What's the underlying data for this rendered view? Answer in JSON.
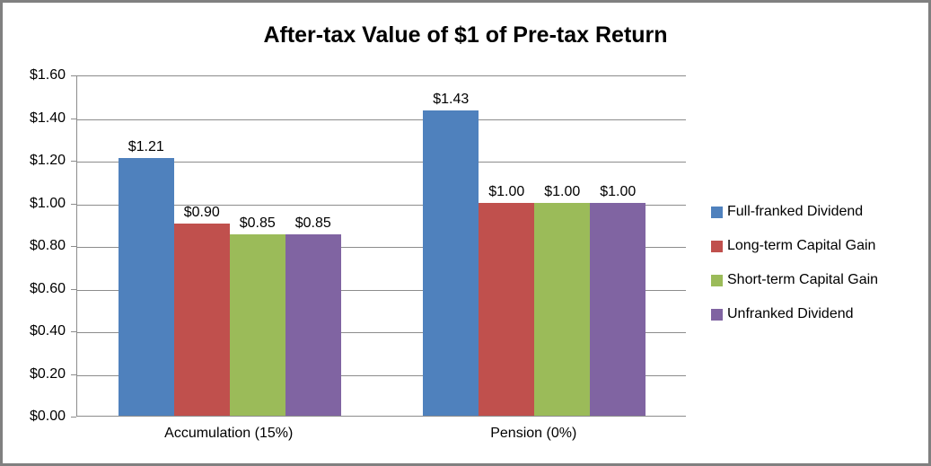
{
  "window": {
    "background": "#ffffff",
    "border_color": "#808080"
  },
  "chart_data": {
    "type": "bar",
    "title": "After-tax Value of $1 of Pre-tax Return",
    "xlabel": "",
    "ylabel": "",
    "categories": [
      "Accumulation (15%)",
      "Pension (0%)"
    ],
    "series": [
      {
        "name": "Full-franked Dividend",
        "color": "#4F81BD",
        "values": [
          1.21,
          1.43
        ],
        "labels": [
          "$1.21",
          "$1.43"
        ]
      },
      {
        "name": "Long-term Capital Gain",
        "color": "#C0504D",
        "values": [
          0.9,
          1.0
        ],
        "labels": [
          "$0.90",
          "$1.00"
        ]
      },
      {
        "name": "Short-term Capital Gain",
        "color": "#9BBB59",
        "values": [
          0.85,
          1.0
        ],
        "labels": [
          "$0.85",
          "$1.00"
        ]
      },
      {
        "name": "Unfranked Dividend",
        "color": "#8064A2",
        "values": [
          0.85,
          1.0
        ],
        "labels": [
          "$0.85",
          "$1.00"
        ]
      }
    ],
    "ylim": [
      0,
      1.6
    ],
    "ytick_step": 0.2,
    "yticks": [
      "$0.00",
      "$0.20",
      "$0.40",
      "$0.60",
      "$0.80",
      "$1.00",
      "$1.20",
      "$1.40",
      "$1.60"
    ],
    "grid": true,
    "gridline_color": "#8C8C8C",
    "axis_color": "#8C8C8C",
    "legend_position": "right"
  }
}
